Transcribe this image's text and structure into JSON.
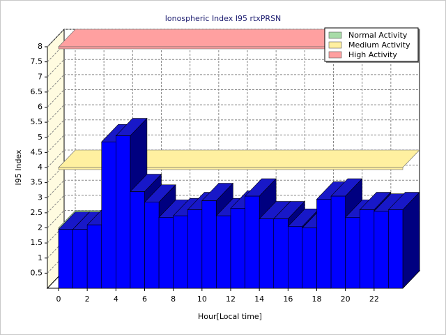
{
  "chart_data": {
    "type": "bar3d",
    "title": "Ionospheric Index I95 rtxPRSN",
    "xlabel": "Hour[Local time]",
    "ylabel": "I95 Index",
    "x": [
      0,
      1,
      2,
      3,
      4,
      5,
      6,
      7,
      8,
      9,
      10,
      11,
      12,
      13,
      14,
      15,
      16,
      17,
      18,
      19,
      20,
      21,
      22,
      23
    ],
    "values": [
      1.95,
      1.95,
      2.1,
      4.85,
      5.05,
      3.2,
      2.85,
      2.35,
      2.4,
      2.6,
      2.9,
      2.4,
      2.65,
      3.05,
      2.3,
      2.3,
      2.05,
      2.0,
      2.95,
      3.05,
      2.35,
      2.6,
      2.55,
      2.6
    ],
    "color": "#0000ff",
    "xlim": [
      0,
      24
    ],
    "xticks": [
      0,
      2,
      4,
      6,
      8,
      10,
      12,
      14,
      16,
      18,
      20,
      22
    ],
    "ylim": [
      0,
      8
    ],
    "yticks": [
      0.5,
      1,
      1.5,
      2,
      2.5,
      3,
      3.5,
      4,
      4.5,
      5,
      5.5,
      6,
      6.5,
      7,
      7.5,
      8
    ],
    "grid": true,
    "legend": "upper right",
    "bands": [
      {
        "name": "Normal Activity",
        "color": "#a8dca8",
        "value": 2
      },
      {
        "name": "Medium Activity",
        "color": "#fff0a0",
        "value": 4
      },
      {
        "name": "High Activity",
        "color": "#ffa0a0",
        "value": 8
      }
    ]
  }
}
